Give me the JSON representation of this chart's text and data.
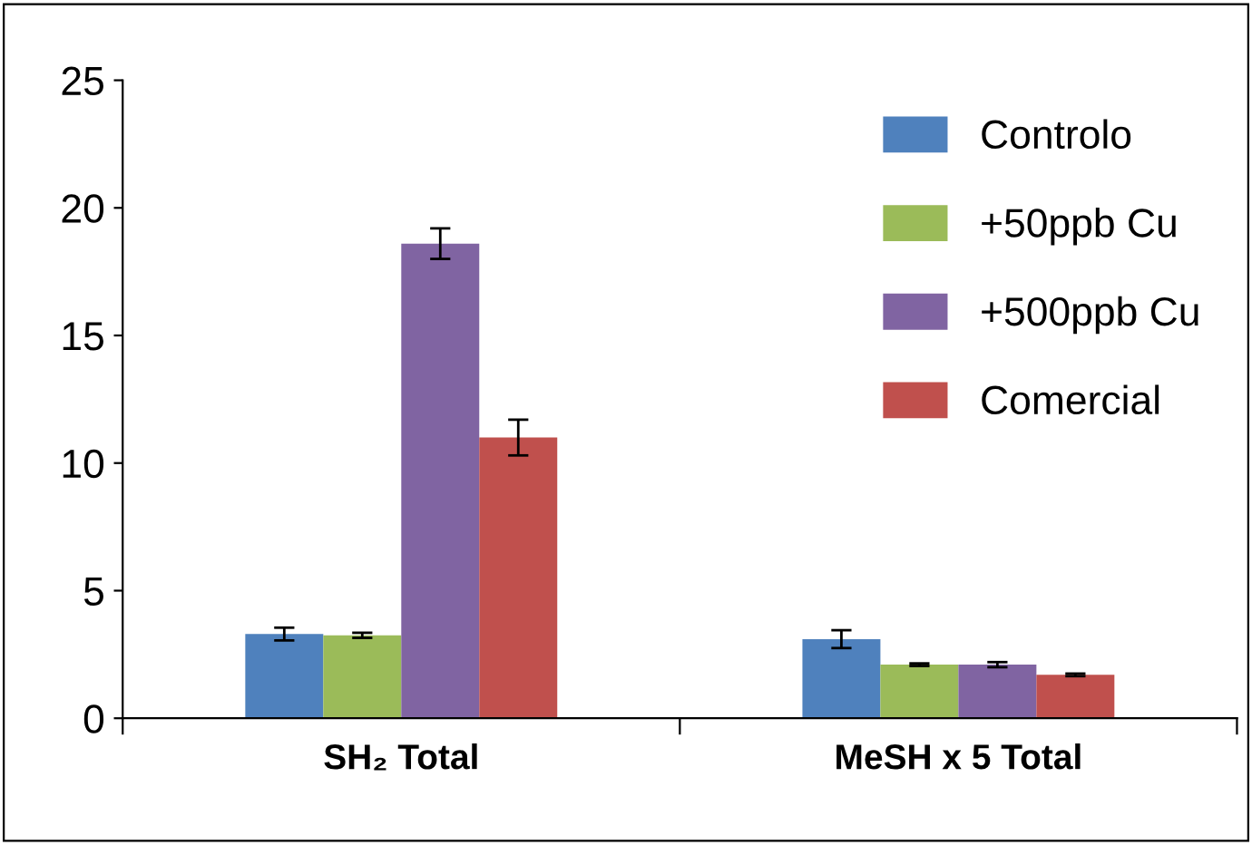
{
  "chart_data": {
    "type": "bar",
    "categories": [
      "SH₂ Total",
      "MeSH x 5 Total"
    ],
    "series": [
      {
        "name": "Controlo",
        "color": "#4f81bd",
        "values": [
          3.3,
          3.1
        ],
        "errors": [
          0.25,
          0.35
        ]
      },
      {
        "name": "+50ppb Cu",
        "color": "#9bbb59",
        "values": [
          3.25,
          2.1
        ],
        "errors": [
          0.1,
          0.05
        ]
      },
      {
        "name": "+500ppb Cu",
        "color": "#8064a2",
        "values": [
          18.6,
          2.1
        ],
        "errors": [
          0.6,
          0.1
        ]
      },
      {
        "name": "Comercial",
        "color": "#c0504d",
        "values": [
          11.0,
          1.7
        ],
        "errors": [
          0.7,
          0.05
        ]
      }
    ],
    "ylim": [
      0,
      25
    ],
    "yticks": [
      0,
      5,
      10,
      15,
      20,
      25
    ],
    "grid": false,
    "legend": "top right"
  }
}
